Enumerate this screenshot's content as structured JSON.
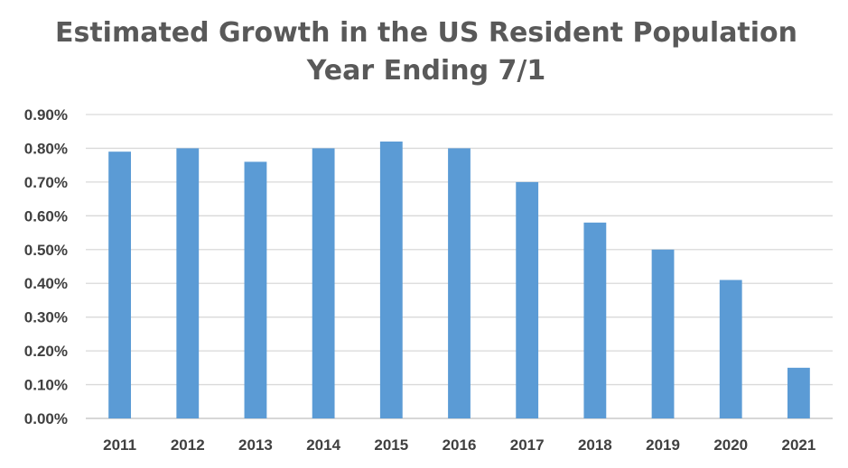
{
  "chart_data": {
    "type": "bar",
    "title": "Estimated Growth in the US Resident Population",
    "subtitle": "Year Ending 7/1",
    "xlabel": "",
    "ylabel": "",
    "categories": [
      "2011",
      "2012",
      "2013",
      "2014",
      "2015",
      "2016",
      "2017",
      "2018",
      "2019",
      "2020",
      "2021"
    ],
    "series": [
      {
        "values": [
          0.79,
          0.8,
          0.76,
          0.8,
          0.82,
          0.8,
          0.7,
          0.58,
          0.5,
          0.41,
          0.15
        ],
        "color": "#5b9bd5"
      }
    ],
    "ylim": [
      0,
      0.9
    ],
    "yticks": [
      0.0,
      0.1,
      0.2,
      0.3,
      0.4,
      0.5,
      0.6,
      0.7,
      0.8,
      0.9
    ],
    "ytick_labels": [
      "0.00%",
      "0.10%",
      "0.20%",
      "0.30%",
      "0.40%",
      "0.50%",
      "0.60%",
      "0.70%",
      "0.80%",
      "0.90%"
    ],
    "grid": true,
    "legend": "none"
  }
}
